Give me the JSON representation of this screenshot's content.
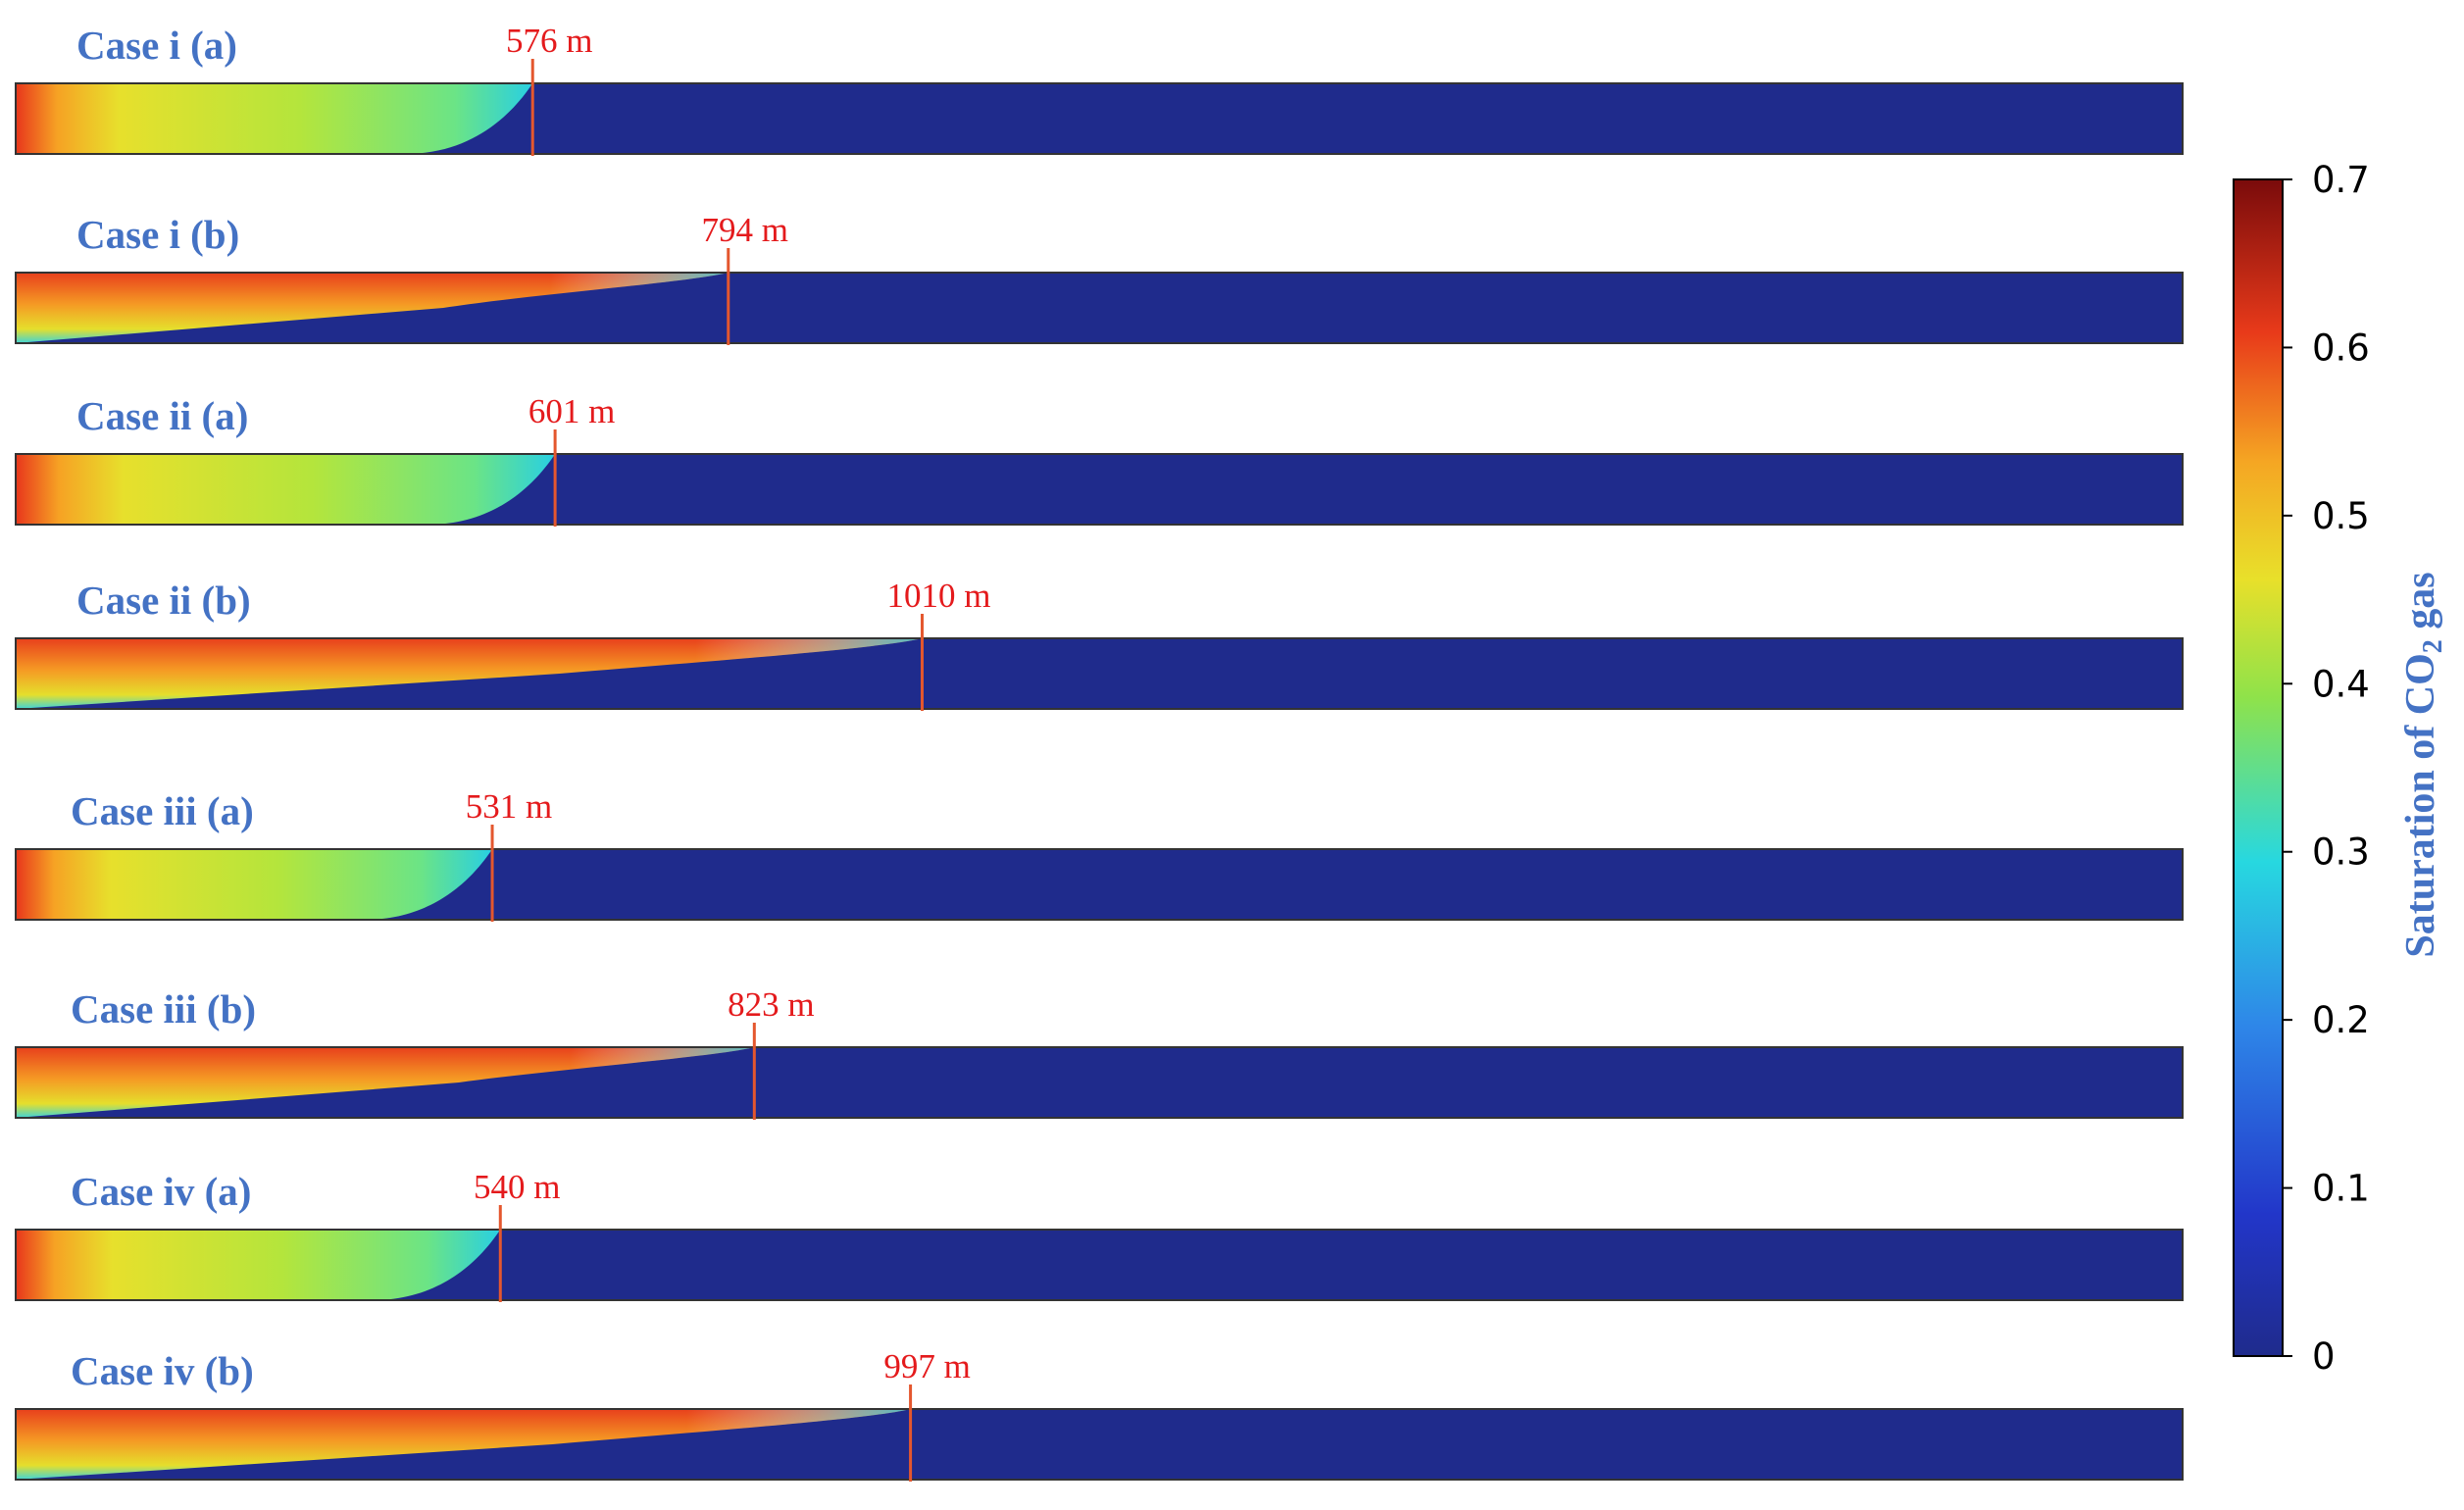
{
  "colors": {
    "label": "#4472C4",
    "distance": "#E41A1C",
    "front_line": "#E4572E",
    "background": "#1F2B8C"
  },
  "cases": [
    {
      "label": "Case i (a)",
      "distance": "576 m",
      "distance_m": 576,
      "profile": "convex"
    },
    {
      "label": "Case i (b)",
      "distance": "794 m",
      "distance_m": 794,
      "profile": "wedge"
    },
    {
      "label": "Case ii (a)",
      "distance": "601 m",
      "distance_m": 601,
      "profile": "convex"
    },
    {
      "label": "Case ii (b)",
      "distance": "1010 m",
      "distance_m": 1010,
      "profile": "wedge"
    },
    {
      "label": "Case iii (a)",
      "distance": "531 m",
      "distance_m": 531,
      "profile": "convex"
    },
    {
      "label": "Case iii (b)",
      "distance": "823 m",
      "distance_m": 823,
      "profile": "wedge"
    },
    {
      "label": "Case iv (a)",
      "distance": "540 m",
      "distance_m": 540,
      "profile": "convex"
    },
    {
      "label": "Case iv (b)",
      "distance": "997 m",
      "distance_m": 997,
      "profile": "wedge"
    }
  ],
  "colorbar": {
    "title_main": "Saturation of  CO",
    "title_sub": "2",
    "title_tail": " gas",
    "min": 0,
    "max": 0.7,
    "ticks": [
      "0",
      "0.1",
      "0.2",
      "0.3",
      "0.4",
      "0.5",
      "0.6",
      "0.7"
    ]
  }
}
